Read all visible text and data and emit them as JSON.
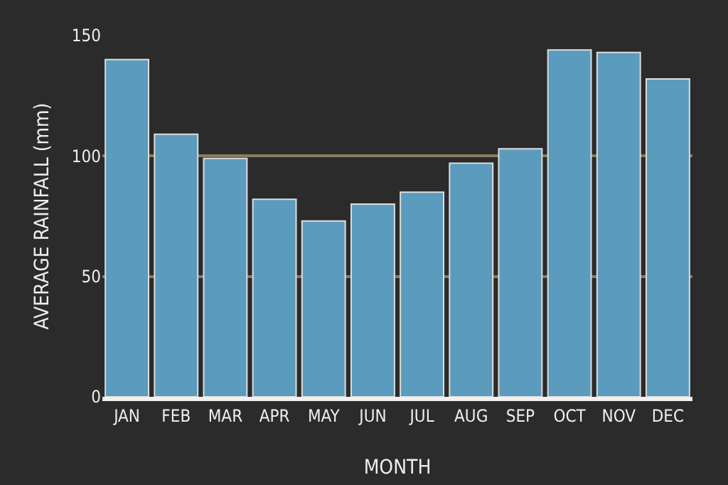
{
  "chart_data": {
    "type": "bar",
    "xlabel": "MONTH",
    "ylabel": "AVERAGE RAINFALL (mm)",
    "categories": [
      "JAN",
      "FEB",
      "MAR",
      "APR",
      "MAY",
      "JUN",
      "JUL",
      "AUG",
      "SEP",
      "OCT",
      "NOV",
      "DEC"
    ],
    "values": [
      140,
      109,
      99,
      82,
      73,
      80,
      85,
      97,
      103,
      144,
      143,
      132
    ],
    "color": "#5b9bbd",
    "ylim": [
      0,
      150
    ],
    "yticks": [
      0,
      50,
      100,
      150
    ],
    "grid": "y"
  }
}
